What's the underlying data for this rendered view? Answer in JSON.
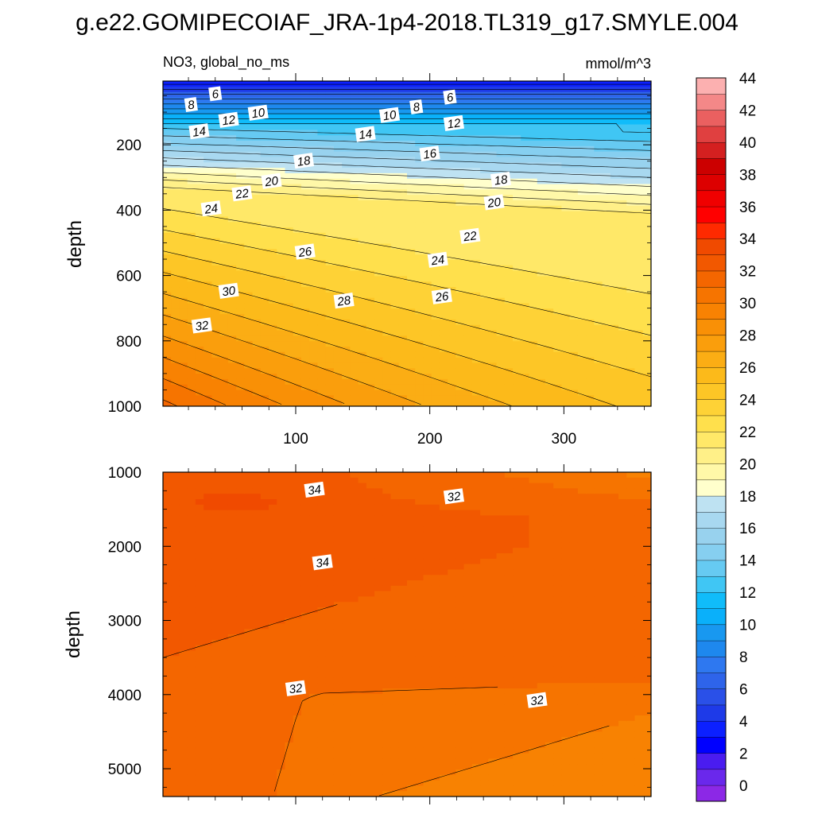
{
  "figure": {
    "title": "g.e22.GOMIPECOIAF_JRA-1p4-2018.TL319_g17.SMYLE.004"
  },
  "chart_data": [
    {
      "type": "contour",
      "panel": "upper",
      "left_label": "NO3, global_no_ms",
      "right_label": "mmol/m^3",
      "ylabel": "depth",
      "xlabel": "",
      "xlim": [
        1,
        365
      ],
      "ylim": [
        1000,
        5
      ],
      "y_inverted": true,
      "xticks": [
        100,
        200,
        300
      ],
      "yticks": [
        200,
        400,
        600,
        800,
        1000
      ],
      "contour_labels": [
        {
          "text": "6",
          "x": 40,
          "y": 45
        },
        {
          "text": "8",
          "x": 22,
          "y": 78
        },
        {
          "text": "10",
          "x": 72,
          "y": 103
        },
        {
          "text": "12",
          "x": 50,
          "y": 125
        },
        {
          "text": "14",
          "x": 28,
          "y": 160
        },
        {
          "text": "10",
          "x": 170,
          "y": 110
        },
        {
          "text": "8",
          "x": 190,
          "y": 85
        },
        {
          "text": "6",
          "x": 215,
          "y": 55
        },
        {
          "text": "12",
          "x": 218,
          "y": 135
        },
        {
          "text": "14",
          "x": 152,
          "y": 168
        },
        {
          "text": "16",
          "x": 200,
          "y": 228
        },
        {
          "text": "18",
          "x": 106,
          "y": 250
        },
        {
          "text": "18",
          "x": 253,
          "y": 308
        },
        {
          "text": "20",
          "x": 82,
          "y": 312
        },
        {
          "text": "20",
          "x": 248,
          "y": 377
        },
        {
          "text": "22",
          "x": 60,
          "y": 350
        },
        {
          "text": "22",
          "x": 230,
          "y": 480
        },
        {
          "text": "24",
          "x": 37,
          "y": 396
        },
        {
          "text": "24",
          "x": 206,
          "y": 553
        },
        {
          "text": "26",
          "x": 107,
          "y": 528
        },
        {
          "text": "26",
          "x": 209,
          "y": 665
        },
        {
          "text": "28",
          "x": 136,
          "y": 678
        },
        {
          "text": "30",
          "x": 50,
          "y": 648
        },
        {
          "text": "32",
          "x": 30,
          "y": 754
        }
      ]
    },
    {
      "type": "contour",
      "panel": "lower",
      "ylabel": "depth",
      "xlabel": "",
      "xlim": [
        1,
        365
      ],
      "ylim": [
        5375,
        1000
      ],
      "y_inverted": true,
      "xticks": [
        100,
        200,
        300
      ],
      "yticks": [
        1000,
        2000,
        3000,
        4000,
        5000
      ],
      "contour_labels": [
        {
          "text": "34",
          "x": 114,
          "y": 1240
        },
        {
          "text": "32",
          "x": 218,
          "y": 1330
        },
        {
          "text": "34",
          "x": 120,
          "y": 2220
        },
        {
          "text": "32",
          "x": 100,
          "y": 3920
        },
        {
          "text": "32",
          "x": 280,
          "y": 4080
        }
      ]
    }
  ],
  "colorbar": {
    "levels": [
      0,
      2,
      4,
      6,
      8,
      10,
      12,
      14,
      16,
      18,
      20,
      22,
      24,
      26,
      28,
      30,
      32,
      34,
      36,
      38,
      40,
      42,
      44
    ],
    "tick_labels": [
      "0",
      "2",
      "4",
      "6",
      "8",
      "10",
      "12",
      "14",
      "16",
      "18",
      "20",
      "22",
      "24",
      "26",
      "28",
      "30",
      "32",
      "34",
      "36",
      "38",
      "40",
      "42",
      "44"
    ],
    "colors": [
      "#8c28e6",
      "#6a28ec",
      "#4a1cf0",
      "#0000ff",
      "#0c20ff",
      "#1e3ae8",
      "#2a50e8",
      "#2e64ea",
      "#2e78f0",
      "#1e88ee",
      "#1898f0",
      "#0ab0fa",
      "#10bcfa",
      "#40c6f4",
      "#66caf2",
      "#86cff0",
      "#98d2ee",
      "#a8d8f0",
      "#bee2f2",
      "#ffffcc",
      "#fff8a8",
      "#fff088",
      "#ffe868",
      "#ffe04c",
      "#fed236",
      "#fdc626",
      "#fcba1a",
      "#fbad14",
      "#fa9e0c",
      "#f99006",
      "#f88202",
      "#f67400",
      "#f46600",
      "#f25800",
      "#f04a00",
      "#ff2a00",
      "#ff0000",
      "#f00000",
      "#dd0000",
      "#cc0000",
      "#d42020",
      "#e04040",
      "#ea6060",
      "#f48888",
      "#fcb0b0"
    ]
  }
}
